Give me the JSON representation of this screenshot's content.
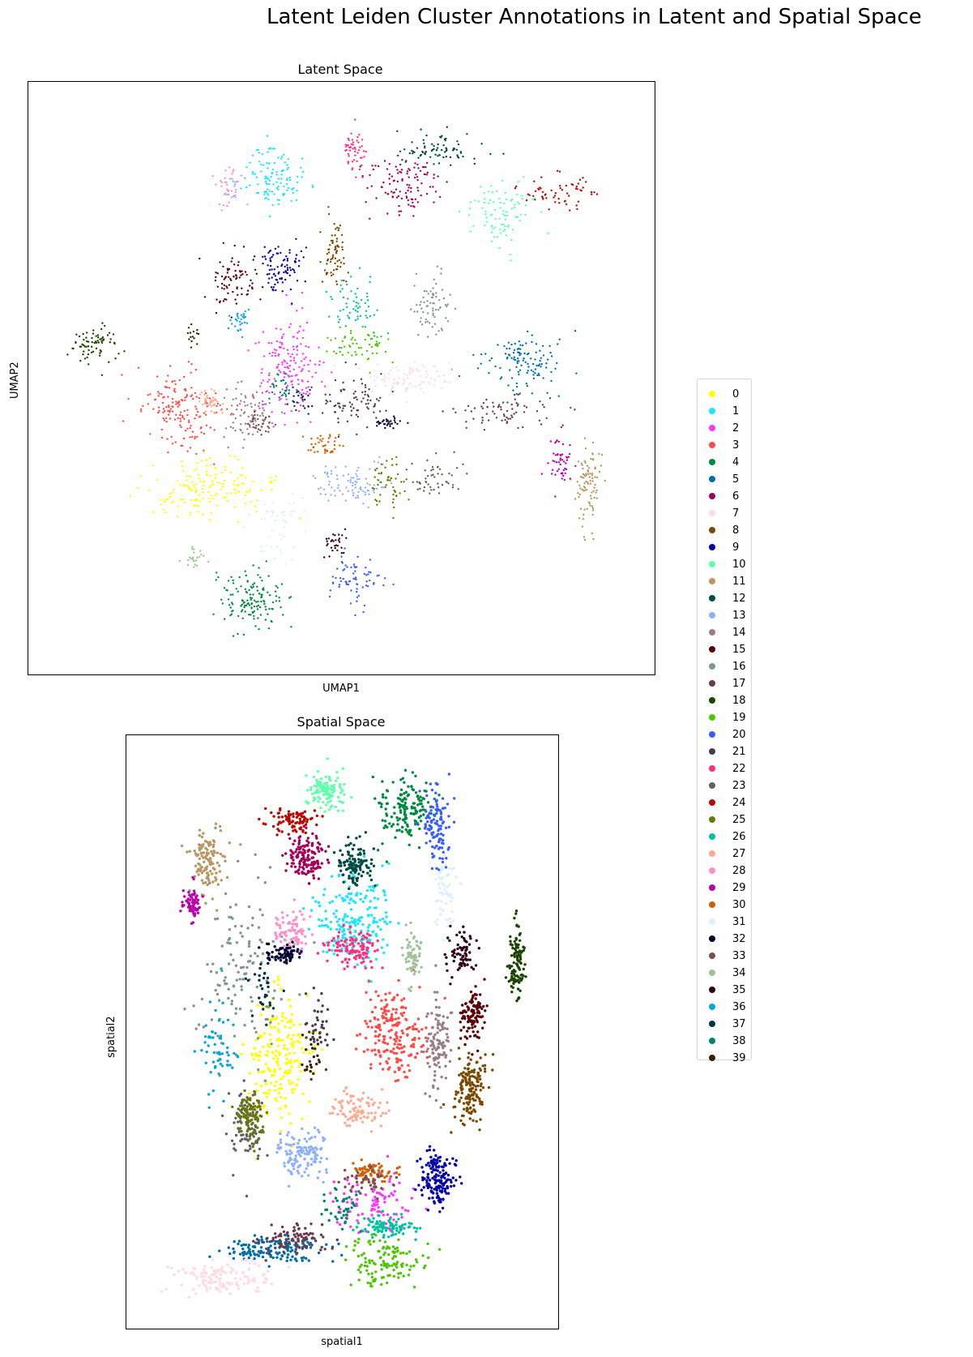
{
  "suptitle": "Latent Leiden Cluster Annotations in Latent and Spatial Space",
  "panels": {
    "latent": {
      "title": "Latent Space",
      "xlabel": "UMAP1",
      "ylabel": "UMAP2"
    },
    "spatial": {
      "title": "Spatial Space",
      "xlabel": "spatial1",
      "ylabel": "spatial2"
    }
  },
  "legend": {
    "placement": "right",
    "items": [
      {
        "label": "0",
        "color": "#ffff00"
      },
      {
        "label": "1",
        "color": "#1ce6ff"
      },
      {
        "label": "2",
        "color": "#ff34ff"
      },
      {
        "label": "3",
        "color": "#ff4a46"
      },
      {
        "label": "4",
        "color": "#008941"
      },
      {
        "label": "5",
        "color": "#006fa6"
      },
      {
        "label": "6",
        "color": "#a30059"
      },
      {
        "label": "7",
        "color": "#ffdbe5"
      },
      {
        "label": "8",
        "color": "#7a4900"
      },
      {
        "label": "9",
        "color": "#0000a6"
      },
      {
        "label": "10",
        "color": "#63ffac"
      },
      {
        "label": "11",
        "color": "#b79762"
      },
      {
        "label": "12",
        "color": "#004d43"
      },
      {
        "label": "13",
        "color": "#8fb0ff"
      },
      {
        "label": "14",
        "color": "#997d87"
      },
      {
        "label": "15",
        "color": "#5a0007"
      },
      {
        "label": "16",
        "color": "#809693"
      },
      {
        "label": "17",
        "color": "#6a3a4c"
      },
      {
        "label": "18",
        "color": "#1b4400"
      },
      {
        "label": "19",
        "color": "#4fc601"
      },
      {
        "label": "20",
        "color": "#3b5dff"
      },
      {
        "label": "21",
        "color": "#4a3b53"
      },
      {
        "label": "22",
        "color": "#ff2f80"
      },
      {
        "label": "23",
        "color": "#61615a"
      },
      {
        "label": "24",
        "color": "#ba0900"
      },
      {
        "label": "25",
        "color": "#6b7900"
      },
      {
        "label": "26",
        "color": "#00c2a0"
      },
      {
        "label": "27",
        "color": "#ffaa92"
      },
      {
        "label": "28",
        "color": "#ff90c9"
      },
      {
        "label": "29",
        "color": "#b903aa"
      },
      {
        "label": "30",
        "color": "#d16100"
      },
      {
        "label": "31",
        "color": "#ddefff"
      },
      {
        "label": "32",
        "color": "#000035"
      },
      {
        "label": "33",
        "color": "#7b4f4b"
      },
      {
        "label": "34",
        "color": "#a1c299"
      },
      {
        "label": "35",
        "color": "#300018"
      },
      {
        "label": "36",
        "color": "#0aa6d8"
      },
      {
        "label": "37",
        "color": "#013349"
      },
      {
        "label": "38",
        "color": "#00846f"
      },
      {
        "label": "39",
        "color": "#372101"
      }
    ]
  },
  "chart_data": [
    {
      "type": "scatter",
      "title": "Latent Space",
      "xlabel": "UMAP1",
      "ylabel": "UMAP2",
      "grid": false,
      "ticks": "none",
      "point_size": "small",
      "color_by": "cluster",
      "series": [
        {
          "cluster": "0",
          "x": 0.27,
          "y": 0.3,
          "spread": [
            0.1,
            0.05
          ],
          "n": 160
        },
        {
          "cluster": "1",
          "x": 0.38,
          "y": 0.86,
          "spread": [
            0.05,
            0.05
          ],
          "n": 120
        },
        {
          "cluster": "2",
          "x": 0.41,
          "y": 0.52,
          "spread": [
            0.05,
            0.08
          ],
          "n": 170
        },
        {
          "cluster": "3",
          "x": 0.23,
          "y": 0.44,
          "spread": [
            0.06,
            0.07
          ],
          "n": 170
        },
        {
          "cluster": "4",
          "x": 0.35,
          "y": 0.1,
          "spread": [
            0.05,
            0.05
          ],
          "n": 140
        },
        {
          "cluster": "5",
          "x": 0.81,
          "y": 0.53,
          "spread": [
            0.07,
            0.05
          ],
          "n": 120
        },
        {
          "cluster": "6",
          "x": 0.6,
          "y": 0.85,
          "spread": [
            0.06,
            0.06
          ],
          "n": 110
        },
        {
          "cluster": "7",
          "x": 0.6,
          "y": 0.5,
          "spread": [
            0.07,
            0.03
          ],
          "n": 100
        },
        {
          "cluster": "8",
          "x": 0.49,
          "y": 0.72,
          "spread": [
            0.02,
            0.06
          ],
          "n": 70
        },
        {
          "cluster": "9",
          "x": 0.4,
          "y": 0.7,
          "spread": [
            0.04,
            0.04
          ],
          "n": 90
        },
        {
          "cluster": "10",
          "x": 0.77,
          "y": 0.8,
          "spread": [
            0.05,
            0.05
          ],
          "n": 90
        },
        {
          "cluster": "11",
          "x": 0.92,
          "y": 0.31,
          "spread": [
            0.02,
            0.07
          ],
          "n": 90
        },
        {
          "cluster": "12",
          "x": 0.66,
          "y": 0.91,
          "spread": [
            0.06,
            0.03
          ],
          "n": 80
        },
        {
          "cluster": "13",
          "x": 0.52,
          "y": 0.31,
          "spread": [
            0.06,
            0.03
          ],
          "n": 90
        },
        {
          "cluster": "14",
          "x": 0.34,
          "y": 0.44,
          "spread": [
            0.04,
            0.05
          ],
          "n": 90
        },
        {
          "cluster": "15",
          "x": 0.32,
          "y": 0.67,
          "spread": [
            0.04,
            0.05
          ],
          "n": 80
        },
        {
          "cluster": "16",
          "x": 0.65,
          "y": 0.63,
          "spread": [
            0.03,
            0.05
          ],
          "n": 70
        },
        {
          "cluster": "17",
          "x": 0.77,
          "y": 0.44,
          "spread": [
            0.07,
            0.03
          ],
          "n": 70
        },
        {
          "cluster": "18",
          "x": 0.08,
          "y": 0.56,
          "spread": [
            0.04,
            0.03
          ],
          "n": 70
        },
        {
          "cluster": "19",
          "x": 0.53,
          "y": 0.56,
          "spread": [
            0.05,
            0.03
          ],
          "n": 60
        },
        {
          "cluster": "20",
          "x": 0.52,
          "y": 0.14,
          "spread": [
            0.04,
            0.04
          ],
          "n": 70
        },
        {
          "cluster": "21",
          "x": 0.52,
          "y": 0.46,
          "spread": [
            0.05,
            0.04
          ],
          "n": 80
        },
        {
          "cluster": "22",
          "x": 0.52,
          "y": 0.91,
          "spread": [
            0.02,
            0.04
          ],
          "n": 50
        },
        {
          "cluster": "23",
          "x": 0.66,
          "y": 0.32,
          "spread": [
            0.04,
            0.03
          ],
          "n": 50
        },
        {
          "cluster": "24",
          "x": 0.87,
          "y": 0.83,
          "spread": [
            0.06,
            0.03
          ],
          "n": 60
        },
        {
          "cluster": "25",
          "x": 0.58,
          "y": 0.31,
          "spread": [
            0.03,
            0.04
          ],
          "n": 50
        },
        {
          "cluster": "26",
          "x": 0.52,
          "y": 0.63,
          "spread": [
            0.04,
            0.04
          ],
          "n": 60
        },
        {
          "cluster": "27",
          "x": 0.28,
          "y": 0.46,
          "spread": [
            0.02,
            0.02
          ],
          "n": 40
        },
        {
          "cluster": "28",
          "x": 0.31,
          "y": 0.84,
          "spread": [
            0.02,
            0.04
          ],
          "n": 40
        },
        {
          "cluster": "29",
          "x": 0.87,
          "y": 0.35,
          "spread": [
            0.02,
            0.04
          ],
          "n": 50
        },
        {
          "cluster": "30",
          "x": 0.47,
          "y": 0.38,
          "spread": [
            0.03,
            0.02
          ],
          "n": 40
        },
        {
          "cluster": "31",
          "x": 0.4,
          "y": 0.23,
          "spread": [
            0.04,
            0.05
          ],
          "n": 50
        },
        {
          "cluster": "32",
          "x": 0.58,
          "y": 0.42,
          "spread": [
            0.02,
            0.01
          ],
          "n": 30
        },
        {
          "cluster": "33",
          "x": 0.36,
          "y": 0.42,
          "spread": [
            0.02,
            0.02
          ],
          "n": 30
        },
        {
          "cluster": "34",
          "x": 0.25,
          "y": 0.18,
          "spread": [
            0.02,
            0.02
          ],
          "n": 25
        },
        {
          "cluster": "35",
          "x": 0.49,
          "y": 0.2,
          "spread": [
            0.02,
            0.02
          ],
          "n": 30
        },
        {
          "cluster": "36",
          "x": 0.33,
          "y": 0.6,
          "spread": [
            0.02,
            0.02
          ],
          "n": 30
        },
        {
          "cluster": "37",
          "x": 0.43,
          "y": 0.46,
          "spread": [
            0.02,
            0.02
          ],
          "n": 25
        },
        {
          "cluster": "38",
          "x": 0.4,
          "y": 0.48,
          "spread": [
            0.02,
            0.02
          ],
          "n": 25
        },
        {
          "cluster": "39",
          "x": 0.25,
          "y": 0.58,
          "spread": [
            0.01,
            0.02
          ],
          "n": 15
        }
      ]
    },
    {
      "type": "scatter",
      "title": "Spatial Space",
      "xlabel": "spatial1",
      "ylabel": "spatial2",
      "grid": false,
      "ticks": "none",
      "point_size": "small",
      "color_by": "cluster",
      "series": [
        {
          "cluster": "0",
          "x": 0.34,
          "y": 0.45,
          "spread": [
            0.07,
            0.1
          ],
          "n": 200
        },
        {
          "cluster": "1",
          "x": 0.53,
          "y": 0.7,
          "spread": [
            0.1,
            0.07
          ],
          "n": 200
        },
        {
          "cluster": "2",
          "x": 0.58,
          "y": 0.2,
          "spread": [
            0.1,
            0.05
          ],
          "n": 90
        },
        {
          "cluster": "3",
          "x": 0.63,
          "y": 0.5,
          "spread": [
            0.07,
            0.07
          ],
          "n": 200
        },
        {
          "cluster": "4",
          "x": 0.66,
          "y": 0.9,
          "spread": [
            0.06,
            0.05
          ],
          "n": 160
        },
        {
          "cluster": "5",
          "x": 0.33,
          "y": 0.11,
          "spread": [
            0.12,
            0.02
          ],
          "n": 150
        },
        {
          "cluster": "6",
          "x": 0.41,
          "y": 0.81,
          "spread": [
            0.04,
            0.04
          ],
          "n": 140
        },
        {
          "cluster": "7",
          "x": 0.2,
          "y": 0.06,
          "spread": [
            0.1,
            0.03
          ],
          "n": 140
        },
        {
          "cluster": "8",
          "x": 0.82,
          "y": 0.4,
          "spread": [
            0.04,
            0.06
          ],
          "n": 160
        },
        {
          "cluster": "9",
          "x": 0.74,
          "y": 0.24,
          "spread": [
            0.04,
            0.05
          ],
          "n": 160
        },
        {
          "cluster": "10",
          "x": 0.46,
          "y": 0.93,
          "spread": [
            0.04,
            0.03
          ],
          "n": 120
        },
        {
          "cluster": "11",
          "x": 0.16,
          "y": 0.81,
          "spread": [
            0.04,
            0.05
          ],
          "n": 120
        },
        {
          "cluster": "12",
          "x": 0.53,
          "y": 0.8,
          "spread": [
            0.04,
            0.04
          ],
          "n": 120
        },
        {
          "cluster": "13",
          "x": 0.4,
          "y": 0.28,
          "spread": [
            0.06,
            0.04
          ],
          "n": 130
        },
        {
          "cluster": "14",
          "x": 0.74,
          "y": 0.48,
          "spread": [
            0.03,
            0.08
          ],
          "n": 110
        },
        {
          "cluster": "15",
          "x": 0.83,
          "y": 0.53,
          "spread": [
            0.03,
            0.04
          ],
          "n": 110
        },
        {
          "cluster": "16",
          "x": 0.25,
          "y": 0.6,
          "spread": [
            0.1,
            0.15
          ],
          "n": 130
        },
        {
          "cluster": "17",
          "x": 0.38,
          "y": 0.13,
          "spread": [
            0.08,
            0.02
          ],
          "n": 90
        },
        {
          "cluster": "18",
          "x": 0.94,
          "y": 0.62,
          "spread": [
            0.02,
            0.06
          ],
          "n": 110
        },
        {
          "cluster": "19",
          "x": 0.61,
          "y": 0.09,
          "spread": [
            0.08,
            0.04
          ],
          "n": 120
        },
        {
          "cluster": "20",
          "x": 0.74,
          "y": 0.87,
          "spread": [
            0.03,
            0.06
          ],
          "n": 110
        },
        {
          "cluster": "21",
          "x": 0.44,
          "y": 0.5,
          "spread": [
            0.03,
            0.06
          ],
          "n": 40
        },
        {
          "cluster": "22",
          "x": 0.53,
          "y": 0.65,
          "spread": [
            0.06,
            0.03
          ],
          "n": 110
        },
        {
          "cluster": "23",
          "x": 0.26,
          "y": 0.33,
          "spread": [
            0.04,
            0.06
          ],
          "n": 100
        },
        {
          "cluster": "24",
          "x": 0.38,
          "y": 0.88,
          "spread": [
            0.06,
            0.02
          ],
          "n": 90
        },
        {
          "cluster": "25",
          "x": 0.27,
          "y": 0.35,
          "spread": [
            0.03,
            0.04
          ],
          "n": 80
        },
        {
          "cluster": "26",
          "x": 0.61,
          "y": 0.15,
          "spread": [
            0.06,
            0.02
          ],
          "n": 90
        },
        {
          "cluster": "27",
          "x": 0.54,
          "y": 0.36,
          "spread": [
            0.06,
            0.03
          ],
          "n": 90
        },
        {
          "cluster": "28",
          "x": 0.37,
          "y": 0.68,
          "spread": [
            0.05,
            0.03
          ],
          "n": 80
        },
        {
          "cluster": "29",
          "x": 0.12,
          "y": 0.73,
          "spread": [
            0.02,
            0.03
          ],
          "n": 70
        },
        {
          "cluster": "30",
          "x": 0.58,
          "y": 0.25,
          "spread": [
            0.05,
            0.02
          ],
          "n": 70
        },
        {
          "cluster": "31",
          "x": 0.76,
          "y": 0.75,
          "spread": [
            0.03,
            0.06
          ],
          "n": 60
        },
        {
          "cluster": "32",
          "x": 0.35,
          "y": 0.64,
          "spread": [
            0.04,
            0.02
          ],
          "n": 70
        },
        {
          "cluster": "33",
          "x": 0.55,
          "y": 0.23,
          "spread": [
            0.06,
            0.02
          ],
          "n": 40
        },
        {
          "cluster": "34",
          "x": 0.68,
          "y": 0.64,
          "spread": [
            0.02,
            0.04
          ],
          "n": 60
        },
        {
          "cluster": "35",
          "x": 0.8,
          "y": 0.64,
          "spread": [
            0.03,
            0.04
          ],
          "n": 70
        },
        {
          "cluster": "36",
          "x": 0.19,
          "y": 0.48,
          "spread": [
            0.04,
            0.08
          ],
          "n": 60
        },
        {
          "cluster": "37",
          "x": 0.3,
          "y": 0.58,
          "spread": [
            0.03,
            0.05
          ],
          "n": 30
        },
        {
          "cluster": "38",
          "x": 0.5,
          "y": 0.18,
          "spread": [
            0.04,
            0.03
          ],
          "n": 40
        },
        {
          "cluster": "39",
          "x": 0.42,
          "y": 0.46,
          "spread": [
            0.03,
            0.04
          ],
          "n": 20
        }
      ]
    }
  ]
}
